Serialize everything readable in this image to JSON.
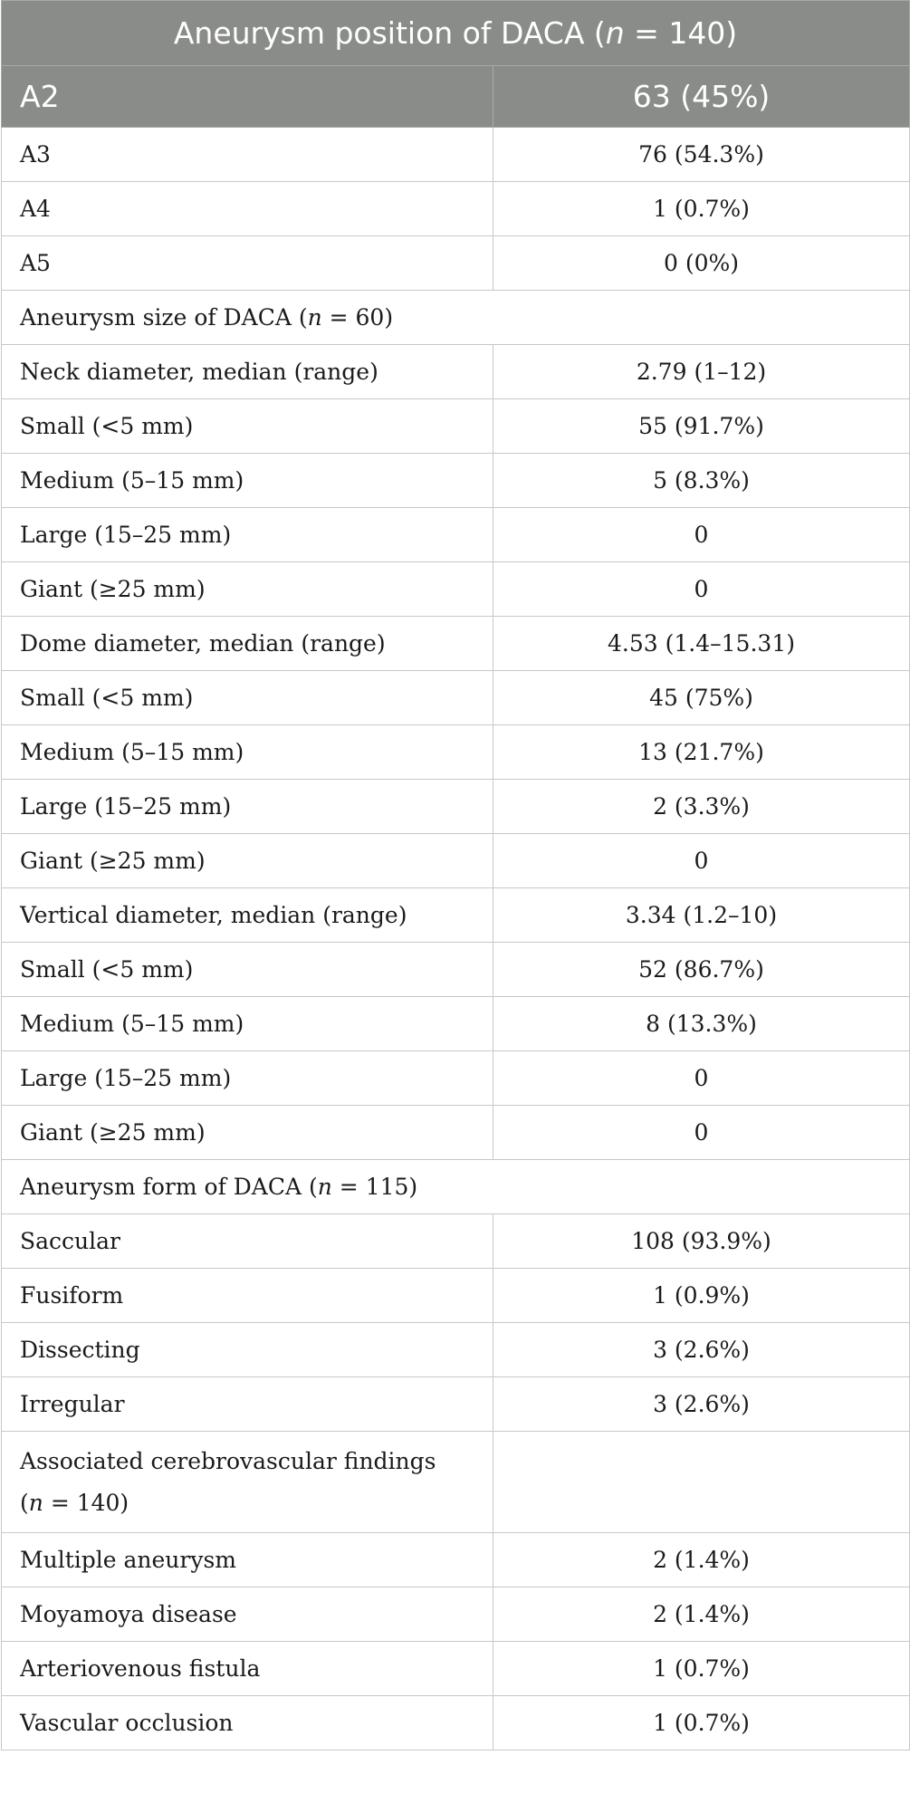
{
  "title": {
    "prefix": "Aneurysm position of DACA (",
    "n": "n",
    "suffix": " = 140)"
  },
  "header": {
    "label": "A2",
    "value": "63 (45%)"
  },
  "rows": [
    {
      "label": "A3",
      "value": "76 (54.3%)"
    },
    {
      "label": "A4",
      "value": "1 (0.7%)"
    },
    {
      "label": "A5",
      "value": "0 (0%)"
    },
    {
      "section": true,
      "prefix": "Aneurysm size of DACA (",
      "n": "n",
      "suffix": " = 60)"
    },
    {
      "label": "Neck diameter, median (range)",
      "value": "2.79 (1–12)"
    },
    {
      "label": "Small (<5 mm)",
      "value": "55 (91.7%)"
    },
    {
      "label": "Medium (5–15 mm)",
      "value": "5 (8.3%)"
    },
    {
      "label": "Large (15–25 mm)",
      "value": "0"
    },
    {
      "label": "Giant (≥25 mm)",
      "value": "0"
    },
    {
      "label": "Dome diameter, median (range)",
      "value": "4.53 (1.4–15.31)"
    },
    {
      "label": "Small (<5 mm)",
      "value": "45 (75%)"
    },
    {
      "label": "Medium (5–15 mm)",
      "value": "13 (21.7%)"
    },
    {
      "label": "Large (15–25 mm)",
      "value": "2 (3.3%)"
    },
    {
      "label": "Giant (≥25 mm)",
      "value": "0"
    },
    {
      "label": "Vertical diameter, median (range)",
      "value": "3.34 (1.2–10)"
    },
    {
      "label": "Small (<5 mm)",
      "value": "52 (86.7%)"
    },
    {
      "label": "Medium (5–15 mm)",
      "value": "8 (13.3%)"
    },
    {
      "label": "Large (15–25 mm)",
      "value": "0"
    },
    {
      "label": "Giant (≥25 mm)",
      "value": "0"
    },
    {
      "section": true,
      "prefix": "Aneurysm form of DACA (",
      "n": "n",
      "suffix": " = 115)"
    },
    {
      "label": "Saccular",
      "value": "108 (93.9%)"
    },
    {
      "label": "Fusiform",
      "value": "1 (0.9%)"
    },
    {
      "label": "Dissecting",
      "value": "3 (2.6%)"
    },
    {
      "label": "Irregular",
      "value": "3 (2.6%)"
    },
    {
      "section": true,
      "tall": true,
      "prefix": "Associated cerebrovascular findings (",
      "n": "n",
      "suffix": " = 140)"
    },
    {
      "label": "Multiple aneurysm",
      "value": "2 (1.4%)"
    },
    {
      "label": "Moyamoya disease",
      "value": "2 (1.4%)"
    },
    {
      "label": "Arteriovenous fistula",
      "value": "1 (0.7%)"
    },
    {
      "label": "Vascular occlusion",
      "value": "1 (0.7%)"
    }
  ]
}
